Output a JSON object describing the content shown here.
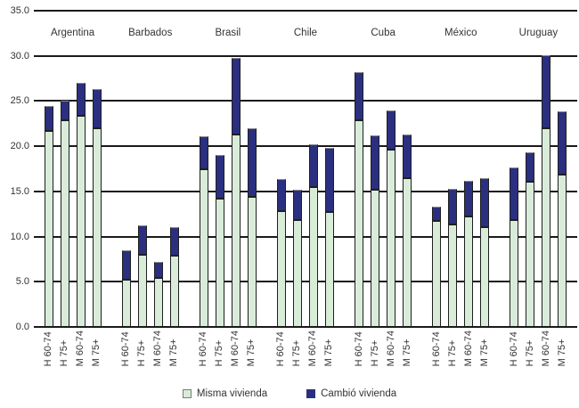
{
  "chart_data": {
    "type": "bar",
    "stacked": true,
    "title": "",
    "grid": true,
    "legend_position": "bottom-center",
    "colors": {
      "misma_vivienda": "#d9ecd9",
      "cambio_vivienda": "#2b2f80",
      "gridline": "#1a1a1a",
      "text": "#333333"
    },
    "y_axis": {
      "min": 0,
      "max": 35,
      "step": 5,
      "tick_labels": [
        "35.0",
        "30.0",
        "25.0",
        "20.0",
        "15.0",
        "10.0",
        "5.0",
        "0.0"
      ]
    },
    "bar_labels": [
      "H 60-74",
      "H 75+",
      "M 60-74",
      "M 75+"
    ],
    "series": [
      {
        "name": "Misma vivienda",
        "color": "#d9ecd9"
      },
      {
        "name": "Cambió vivienda",
        "color": "#2b2f80"
      }
    ],
    "groups": [
      {
        "country": "Argentina",
        "bars": [
          {
            "label": "H 60-74",
            "misma": 21.7,
            "cambio": 2.8,
            "total": 24.5
          },
          {
            "label": "H 75+",
            "misma": 22.9,
            "cambio": 2.1,
            "total": 25.0
          },
          {
            "label": "M 60-74",
            "misma": 23.4,
            "cambio": 3.6,
            "total": 27.0
          },
          {
            "label": "M 75+",
            "misma": 22.0,
            "cambio": 4.3,
            "total": 26.3
          }
        ]
      },
      {
        "country": "Barbados",
        "bars": [
          {
            "label": "H 60-74",
            "misma": 5.2,
            "cambio": 3.3,
            "total": 8.5
          },
          {
            "label": "H 75+",
            "misma": 8.0,
            "cambio": 3.2,
            "total": 11.2
          },
          {
            "label": "M 60-74",
            "misma": 5.4,
            "cambio": 1.8,
            "total": 7.2
          },
          {
            "label": "M 75+",
            "misma": 7.9,
            "cambio": 3.1,
            "total": 11.0
          }
        ]
      },
      {
        "country": "Brasil",
        "bars": [
          {
            "label": "H 60-74",
            "misma": 17.5,
            "cambio": 3.6,
            "total": 21.1
          },
          {
            "label": "H 75+",
            "misma": 14.2,
            "cambio": 4.8,
            "total": 19.0
          },
          {
            "label": "M 60-74",
            "misma": 21.3,
            "cambio": 8.5,
            "total": 29.8
          },
          {
            "label": "M 75+",
            "misma": 14.4,
            "cambio": 7.6,
            "total": 22.0
          }
        ]
      },
      {
        "country": "Chile",
        "bars": [
          {
            "label": "H 60-74",
            "misma": 12.8,
            "cambio": 3.6,
            "total": 16.4
          },
          {
            "label": "H 75+",
            "misma": 11.8,
            "cambio": 3.4,
            "total": 15.2
          },
          {
            "label": "M 60-74",
            "misma": 15.5,
            "cambio": 4.7,
            "total": 20.2
          },
          {
            "label": "M 75+",
            "misma": 12.7,
            "cambio": 7.1,
            "total": 19.8
          }
        ]
      },
      {
        "country": "Cuba",
        "bars": [
          {
            "label": "H 60-74",
            "misma": 22.9,
            "cambio": 5.3,
            "total": 28.2
          },
          {
            "label": "H 75+",
            "misma": 15.2,
            "cambio": 6.0,
            "total": 21.2
          },
          {
            "label": "M 60-74",
            "misma": 19.6,
            "cambio": 4.4,
            "total": 24.0
          },
          {
            "label": "M 75+",
            "misma": 16.5,
            "cambio": 4.8,
            "total": 21.3
          }
        ]
      },
      {
        "country": "México",
        "bars": [
          {
            "label": "H 60-74",
            "misma": 11.7,
            "cambio": 1.6,
            "total": 13.3
          },
          {
            "label": "H 75+",
            "misma": 11.3,
            "cambio": 4.0,
            "total": 15.3
          },
          {
            "label": "M 60-74",
            "misma": 12.2,
            "cambio": 4.0,
            "total": 16.2
          },
          {
            "label": "M 75+",
            "misma": 11.0,
            "cambio": 5.5,
            "total": 16.5
          }
        ]
      },
      {
        "country": "Uruguay",
        "bars": [
          {
            "label": "H 60-74",
            "misma": 11.8,
            "cambio": 5.9,
            "total": 17.7
          },
          {
            "label": "H 75+",
            "misma": 16.1,
            "cambio": 3.2,
            "total": 19.3
          },
          {
            "label": "M 60-74",
            "misma": 22.0,
            "cambio": 8.1,
            "total": 30.1
          },
          {
            "label": "M 75+",
            "misma": 16.9,
            "cambio": 7.0,
            "total": 23.9
          }
        ]
      }
    ]
  },
  "legend": {
    "misma_label": "Misma vivienda",
    "cambio_label": "Cambió vivienda"
  }
}
